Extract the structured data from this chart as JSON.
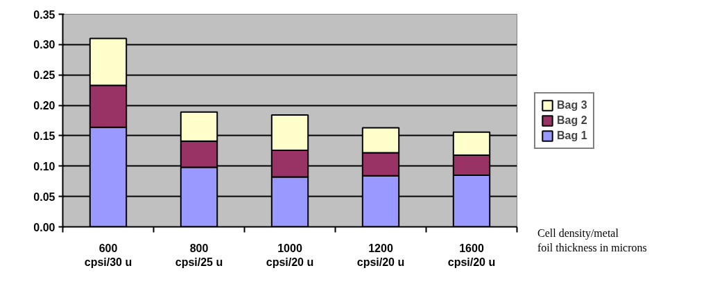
{
  "chart_data": {
    "type": "bar",
    "stacked": true,
    "categories": [
      "600\ncpsi/30 u",
      "800\ncpsi/25 u",
      "1000\ncpsi/20 u",
      "1200\ncpsi/20 u",
      "1600\ncpsi/20 u"
    ],
    "xlabel": "Cell density/metal\nfoil thickness in microns",
    "series": [
      {
        "name": "Bag 1",
        "color": "#9999ff",
        "values": [
          0.164,
          0.098,
          0.082,
          0.084,
          0.085
        ]
      },
      {
        "name": "Bag 2",
        "color": "#993366",
        "values": [
          0.069,
          0.043,
          0.044,
          0.038,
          0.033
        ]
      },
      {
        "name": "Bag 3",
        "color": "#ffffcc",
        "values": [
          0.077,
          0.048,
          0.058,
          0.041,
          0.038
        ]
      }
    ],
    "ylim": [
      0,
      0.35
    ],
    "yticks": [
      {
        "value": 0,
        "label": "0.00"
      },
      {
        "value": 0.05,
        "label": "0.05"
      },
      {
        "value": 0.1,
        "label": "0.10"
      },
      {
        "value": 0.15,
        "label": "0.15"
      },
      {
        "value": 0.2,
        "label": "0.20"
      },
      {
        "value": 0.25,
        "label": "0.25"
      },
      {
        "value": 0.3,
        "label": "0.30"
      },
      {
        "value": 0.35,
        "label": "0.35"
      }
    ],
    "grid": "y",
    "legend": "right"
  }
}
